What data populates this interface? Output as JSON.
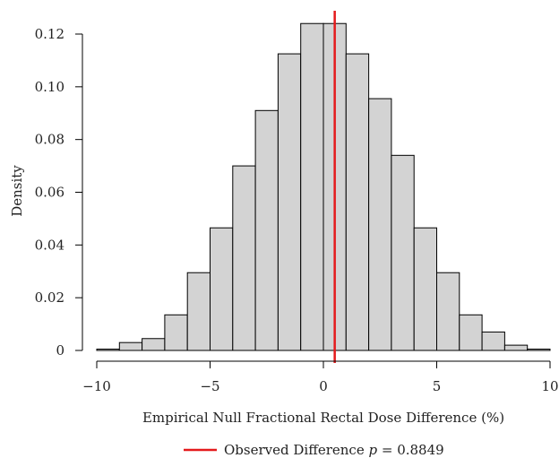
{
  "chart_data": {
    "type": "bar",
    "title": "",
    "xlabel": "Empirical Null Fractional Rectal Dose Difference (%)",
    "ylabel": "Density",
    "xlim": [
      -10,
      10
    ],
    "ylim": [
      0,
      0.125
    ],
    "x_ticks": [
      -10,
      -5,
      0,
      5,
      10
    ],
    "x_tick_labels": [
      "−10",
      "−5",
      "0",
      "5",
      "10"
    ],
    "y_ticks": [
      0,
      0.02,
      0.04,
      0.06,
      0.08,
      0.1,
      0.12
    ],
    "y_tick_labels": [
      "0",
      "0.02",
      "0.04",
      "0.06",
      "0.08",
      "0.10",
      "0.12"
    ],
    "bin_edges": [
      -10,
      -9,
      -8,
      -7,
      -6,
      -5,
      -4,
      -3,
      -2,
      -1,
      0,
      1,
      2,
      3,
      4,
      5,
      6,
      7,
      8,
      9,
      10
    ],
    "values": [
      0.0005,
      0.003,
      0.0045,
      0.0135,
      0.0295,
      0.0465,
      0.07,
      0.091,
      0.1125,
      0.124,
      0.124,
      0.1125,
      0.0955,
      0.074,
      0.0465,
      0.0295,
      0.0135,
      0.007,
      0.002,
      0.0005
    ],
    "bar_color": "#d3d3d3",
    "bar_edge_color": "#000000",
    "observed_line": {
      "x": 0.5,
      "color": "#e41a1c"
    },
    "legend": {
      "label_prefix": "Observed Difference ",
      "p_symbol": "p",
      "p_value": " = 0.8849",
      "position": "bottom-center"
    },
    "grid": false
  }
}
